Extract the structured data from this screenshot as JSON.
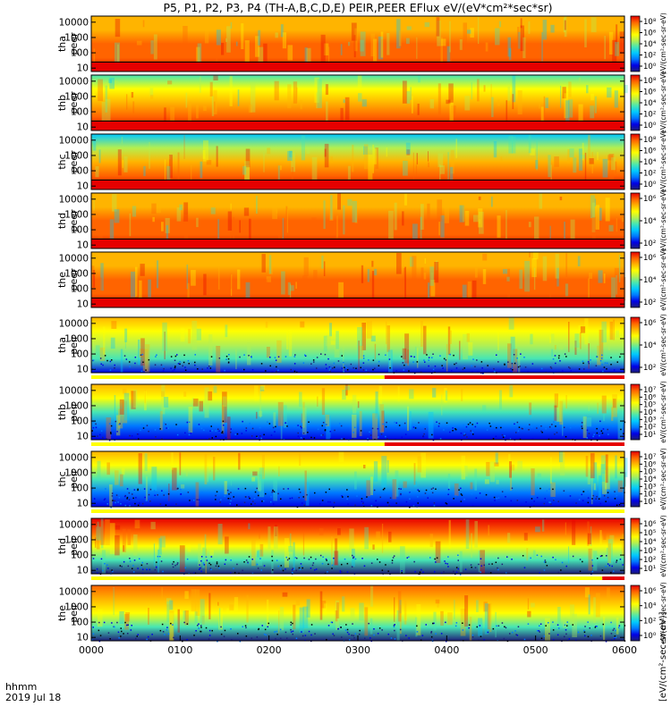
{
  "title": "P5, P1, P2, P3, P4 (TH-A,B,C,D,E) PEIR,PEER EFlux eV/(eV*cm²*sec*sr)",
  "footer": {
    "hhmm": "hhmm",
    "date": "2019 Jul 18"
  },
  "colorbar_unit_label": "[eV/(cm²-sec-sr-eV)]",
  "colormap": [
    "#1e1e78",
    "#0000e6",
    "#0078ff",
    "#00c8ff",
    "#46e6b4",
    "#b4f050",
    "#ffff00",
    "#ffb400",
    "#ff6400",
    "#e60000"
  ],
  "chart_data": {
    "type": "heatmap",
    "x_ticks": [
      "0000",
      "0100",
      "0200",
      "0300",
      "0400",
      "0500",
      "0600"
    ],
    "xlim": [
      "00:00",
      "06:00"
    ],
    "y_scale": "log",
    "ylim": [
      6,
      25000
    ],
    "y_ticks": [
      "10",
      "100",
      "1000",
      "10000"
    ],
    "panels": [
      {
        "probe": "tha",
        "species": "peer",
        "cb_ticks": [
          "10⁸",
          "10⁶",
          "10⁴",
          "10²",
          "10⁰"
        ],
        "cb_side_text": "eV/(cm²-sec-sr-eV)"
      },
      {
        "probe": "thb",
        "species": "peer",
        "cb_ticks": [
          "10⁸",
          "10⁶",
          "10⁴",
          "10²",
          "10⁰"
        ],
        "cb_side_text": "eV/(cm²-sec-sr-eV)"
      },
      {
        "probe": "thc",
        "species": "peer",
        "cb_ticks": [
          "10⁸",
          "10⁶",
          "10⁴",
          "10²",
          "10⁰"
        ],
        "cb_side_text": "eV/(cm²-sec-sr-eV)"
      },
      {
        "probe": "thd",
        "species": "peer",
        "cb_ticks": [
          "10⁶",
          "10⁴",
          "10²"
        ],
        "cb_side_text": "eV/(cm²-sec-sr-eV)"
      },
      {
        "probe": "the",
        "species": "peer",
        "cb_ticks": [
          "10⁶",
          "10⁴",
          "10²"
        ],
        "cb_side_text": "eV/(cm²-sec-sr-eV)"
      },
      {
        "probe": "tha",
        "species": "peir",
        "cb_ticks": [
          "10⁶",
          "10⁴",
          "10²"
        ],
        "cb_side_text": "eV/(cm²-sec-sr-eV)"
      },
      {
        "probe": "thb",
        "species": "peir",
        "cb_ticks": [
          "10⁷",
          "10⁶",
          "10⁵",
          "10⁴",
          "10³",
          "10²",
          "10¹"
        ],
        "cb_side_text": "eV/(cm²-sec-sr-eV)"
      },
      {
        "probe": "thc",
        "species": "peir",
        "cb_ticks": [
          "10⁷",
          "10⁶",
          "10⁵",
          "10⁴",
          "10³",
          "10²",
          "10¹"
        ],
        "cb_side_text": "eV/(cm²-sec-sr-eV)"
      },
      {
        "probe": "thd",
        "species": "peir",
        "cb_ticks": [
          "10⁶",
          "10⁵",
          "10⁴",
          "10³",
          "10²",
          "10¹"
        ],
        "cb_side_text": "eV/(cm²-sec-sr-eV)"
      },
      {
        "probe": "the",
        "species": "peir",
        "cb_ticks": [
          "10⁶",
          "10⁴",
          "10²",
          "10⁰"
        ],
        "cb_side_text": "eV/(cm²-sec-sr-eV)"
      }
    ],
    "quality_bars": [
      {
        "after_panel": 5,
        "segments": [
          {
            "from": "00:00",
            "to": "03:18",
            "color": "#ffff00"
          },
          {
            "from": "03:18",
            "to": "06:00",
            "color": "#e60000"
          }
        ]
      },
      {
        "after_panel": 6,
        "segments": [
          {
            "from": "00:00",
            "to": "03:18",
            "color": "#ffff00"
          },
          {
            "from": "03:18",
            "to": "06:00",
            "color": "#e60000"
          }
        ]
      },
      {
        "after_panel": 7,
        "segments": [
          {
            "from": "00:00",
            "to": "06:00",
            "color": "#ffff00"
          }
        ]
      },
      {
        "after_panel": 8,
        "segments": [
          {
            "from": "00:00",
            "to": "05:45",
            "color": "#ffff00"
          },
          {
            "from": "05:45",
            "to": "06:00",
            "color": "#e60000"
          }
        ]
      }
    ]
  }
}
